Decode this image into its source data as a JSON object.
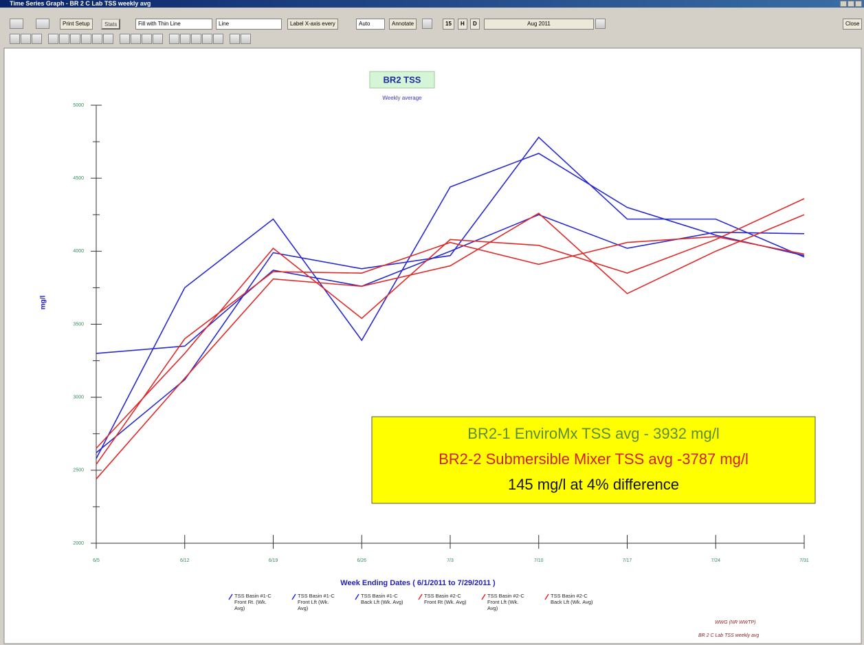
{
  "window": {
    "title": "Time Series Graph - BR 2 C Lab TSS weekly avg",
    "close": "Close"
  },
  "toolbar": {
    "print_setup": "Print Setup",
    "stats": "Stats",
    "fill_mode": "Fill with Thin Line",
    "line_mode": "Line",
    "label_x": "Label X-axis every",
    "label_x_value": "Auto",
    "annotate": "Annotate",
    "b15": "15",
    "h": "H",
    "d": "D",
    "month": "Aug 2011"
  },
  "chart_data": {
    "type": "line",
    "title": "BR2 TSS",
    "subtitle": "Weekly average",
    "x_label": "Week Ending Dates  ( 6/1/2011  to  7/29/2011 )",
    "y_label": "mg/l",
    "categories": [
      "6/5",
      "6/12",
      "6/19",
      "6/26",
      "7/3",
      "7/10",
      "7/17",
      "7/24",
      "7/31"
    ],
    "ylim": [
      2000,
      5000
    ],
    "yticks": [
      2000,
      2500,
      3000,
      3500,
      4000,
      4500,
      5000
    ],
    "yminorticks": [
      2250,
      2750,
      3250,
      3750,
      4250,
      4750
    ],
    "series": [
      {
        "name": "TSS Basin #1-C Front Rt. (Wk. Avg)",
        "color": "#2828d0",
        "values": [
          3300,
          3350,
          3870,
          3760,
          4000,
          4250,
          4020,
          4130,
          4120
        ]
      },
      {
        "name": "TSS Basin #1-C Front Lft (Wk. Avg)",
        "color": "#2828d0",
        "values": [
          2580,
          3750,
          4220,
          3390,
          4440,
          4670,
          4300,
          4110,
          3970
        ]
      },
      {
        "name": "TSS Basin #1-C Back Lft (Wk. Avg)",
        "color": "#2828d0",
        "values": [
          2620,
          3120,
          3990,
          3880,
          3970,
          4780,
          4220,
          4220,
          3960
        ]
      },
      {
        "name": "TSS Basin #2-C Front Rt (Wk. Avg)",
        "color": "#e02828",
        "values": [
          2650,
          3300,
          4020,
          3540,
          4080,
          4040,
          3850,
          4080,
          4360
        ]
      },
      {
        "name": "TSS Basin #2-C Front Lft (Wk. Avg)",
        "color": "#e02828",
        "values": [
          2440,
          3130,
          3810,
          3760,
          3900,
          4260,
          3710,
          4000,
          4250
        ]
      },
      {
        "name": "TSS Basin #2-C Back Lft (Wk. Avg)",
        "color": "#e02828",
        "values": [
          2540,
          3400,
          3860,
          3850,
          4060,
          3910,
          4060,
          4100,
          3980
        ]
      }
    ],
    "annotations": [
      {
        "text": "BR2-1 EnviroMx TSS avg - 3932 mg/l",
        "color": "#5e8c3a"
      },
      {
        "text": "BR2-2 Submersible Mixer TSS avg -3787 mg/l",
        "color": "#d42020"
      },
      {
        "text": "145 mg/l at 4% difference",
        "color": "#111111"
      }
    ],
    "footer": [
      "WWG (NR WWTP)",
      "BR 2 C Lab TSS weekly avg"
    ]
  }
}
